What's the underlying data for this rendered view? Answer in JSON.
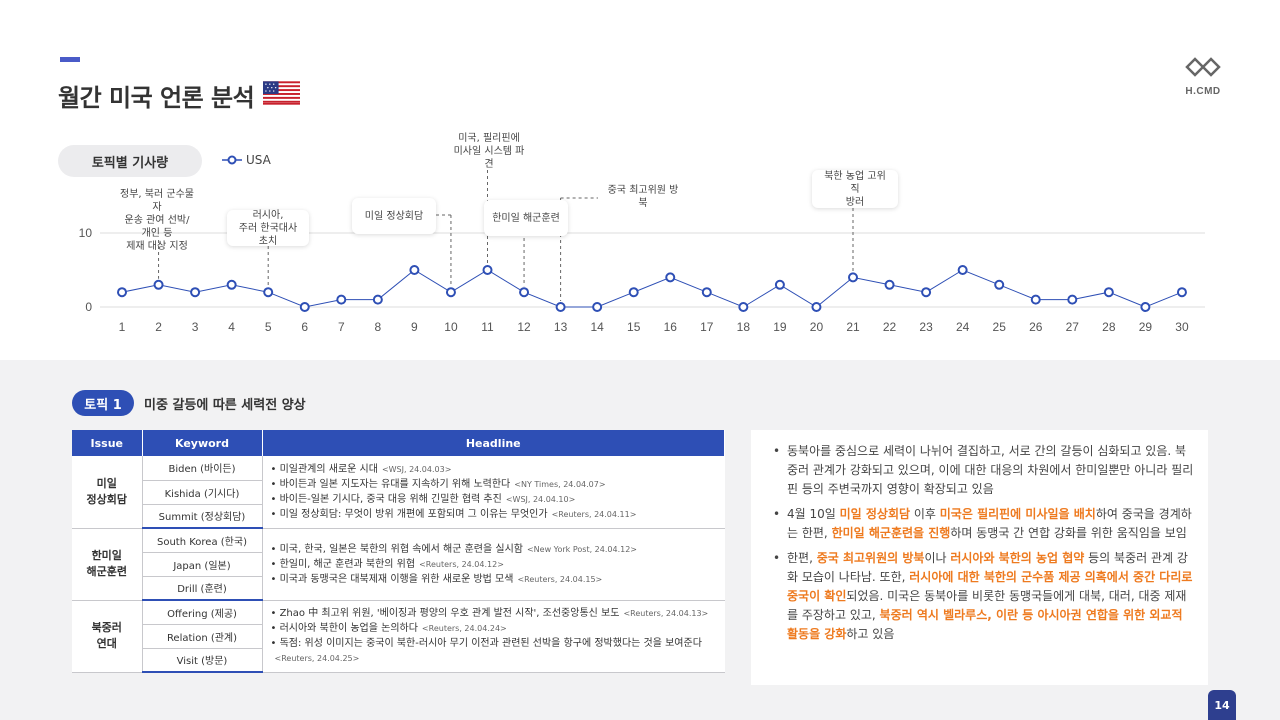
{
  "page": {
    "title": "월간 미국 언론 분석",
    "logo_text": "H.CMD",
    "page_number": "14"
  },
  "chart_section": {
    "pill_label": "토픽별 기사량",
    "legend_label": "USA"
  },
  "chart_data": {
    "type": "line",
    "x": [
      1,
      2,
      3,
      4,
      5,
      6,
      7,
      8,
      9,
      10,
      11,
      12,
      13,
      14,
      15,
      16,
      17,
      18,
      19,
      20,
      21,
      22,
      23,
      24,
      25,
      26,
      27,
      28,
      29,
      30
    ],
    "series": [
      {
        "name": "USA",
        "values": [
          2,
          3,
          2,
          3,
          2,
          0,
          1,
          1,
          5,
          2,
          5,
          2,
          0,
          0,
          2,
          4,
          2,
          0,
          3,
          0,
          4,
          3,
          2,
          5,
          3,
          1,
          1,
          2,
          0,
          2
        ]
      }
    ],
    "yticks": [
      0,
      10
    ],
    "ylim": [
      0,
      10
    ],
    "grid": true,
    "legend_position": "top-left",
    "line_color": "#2e4fb5",
    "annotations": [
      {
        "x": 2,
        "text": "정부, 북러 군수물자\n운송 관여 선박/개인 등\n제재 대상 지정"
      },
      {
        "x": 5,
        "text": "러시아,\n주러 한국대사 초치"
      },
      {
        "x": 10,
        "text": "미일 정상회담"
      },
      {
        "x": 11,
        "text": "미국, 필리핀에\n미사일 시스템 파견"
      },
      {
        "x": 12,
        "text": "한미일 해군훈련"
      },
      {
        "x": 13,
        "text": "중국 최고위원 방북"
      },
      {
        "x": 21,
        "text": "북한 농업 고위직\n방러"
      }
    ]
  },
  "topic": {
    "badge": "토픽 1",
    "title": "미중 갈등에 따른 세력전 양상"
  },
  "table": {
    "headers": {
      "issue": "Issue",
      "keyword": "Keyword",
      "headline": "Headline"
    },
    "groups": [
      {
        "issue_line1": "미일",
        "issue_line2": "정상회담",
        "keywords": [
          "Biden (바이든)",
          "Kishida (기시다)",
          "Summit (정상회담)"
        ],
        "headlines": [
          {
            "text": "미일관계의  새로운 시대",
            "src": "<WSJ, 24.04.03>"
          },
          {
            "text": "바이든과 일본 지도자는 유대를 지속하기 위해 노력한다",
            "src": "<NY Times, 24.04.07>"
          },
          {
            "text": "바이든-일본 기시다, 중국 대응 위해 긴밀한 협력 추진",
            "src": "<WSJ, 24.04.10>"
          },
          {
            "text": "미일 정상회담:  무엇이 방위 개편에 포함되며 그 이유는 무엇인가",
            "src": "<Reuters, 24.04.11>"
          }
        ]
      },
      {
        "issue_line1": "한미일",
        "issue_line2": "해군훈련",
        "keywords": [
          "South Korea (한국)",
          "Japan (일본)",
          "Drill (훈련)"
        ],
        "headlines": [
          {
            "text": "미국, 한국, 일본은 북한의 위협 속에서 해군 훈련을 실시함",
            "src": "<New York Post, 24.04.12>"
          },
          {
            "text": "한일미, 해군 훈련과 북한의 위협",
            "src": "<Reuters, 24.04.12>"
          },
          {
            "text": "미국과 동맹국은 대북제재 이행을 위한 새로운 방법 모색",
            "src": "<Reuters, 24.04.15>"
          }
        ]
      },
      {
        "issue_line1": "북중러",
        "issue_line2": "연대",
        "keywords": [
          "Offering (제공)",
          "Relation (관계)",
          "Visit (방문)"
        ],
        "headlines": [
          {
            "text": "Zhao 中 최고위 위원, '베이징과 평양의 우호 관계 발전 시작', 조선중앙통신 보도",
            "src": "<Reuters, 24.04.13>"
          },
          {
            "text": "러시아와 북한이 농업을 논의하다",
            "src": "<Reuters, 24.04.24>"
          },
          {
            "text": "독점: 위성 이미지는 중국이 북한-러시아 무기 이전과 관련된 선박을 항구에 정박했다는 것을 보여준다",
            "src": "<Reuters, 24.04.25>"
          }
        ]
      }
    ]
  },
  "summary": {
    "b1": "동북아를 중심으로 세력이 나뉘어 결집하고, 서로 간의 갈등이 심화되고 있음. 북중러 관계가 강화되고 있으며, 이에 대한 대응의 차원에서 한미일뿐만 아니라 필리핀 등의 주변국까지 영향이 확장되고 있음",
    "b2": {
      "p1": "4월 10일 ",
      "h1": "미일 정상회담",
      "p2": " 이후 ",
      "h2": "미국은 필리핀에 미사일을 배치",
      "p3": "하여 중국을 경계하는 한편, ",
      "h3": "한미일 해군훈련을 진행",
      "p4": "하며 동맹국 간 연합 강화를 위한 움직임을 보임"
    },
    "b3": {
      "p1": "한편, ",
      "h1": "중국 최고위원의 방북",
      "p2": "이나 ",
      "h2": "러시아와 북한의 농업 협약",
      "p3": " 등의 북중러 관계 강화 모습이 나타남. 또한, ",
      "h3": "러시아에 대한 북한의 군수품 제공 의혹에서 중간 다리로 중국이 확인",
      "p4": "되었음. 미국은 동북아를 비롯한 동맹국들에게 대북, 대러, 대중 제재를 주장하고 있고, ",
      "h4": "북중러 역시 벨라루스, 이란 등 아시아권 연합을 위한 외교적 활동을 강화",
      "p5": "하고 있음"
    }
  }
}
